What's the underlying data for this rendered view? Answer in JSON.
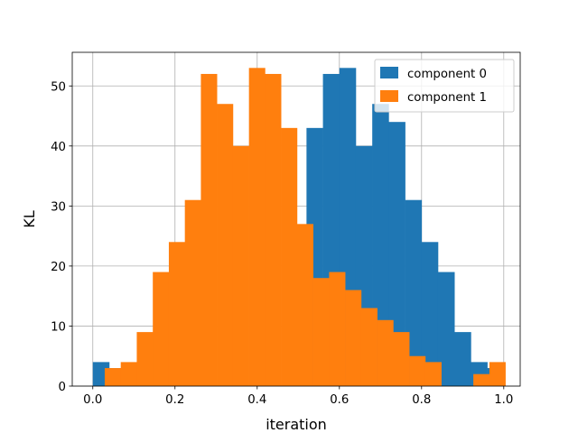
{
  "chart_data": {
    "type": "bar",
    "title": "",
    "xlabel": "iteration",
    "ylabel": "KL",
    "xlim": [
      -0.05,
      1.04
    ],
    "ylim": [
      0,
      55.6
    ],
    "xticks": [
      0.0,
      0.2,
      0.4,
      0.6,
      0.8,
      1.0
    ],
    "xtick_labels": [
      "0.0",
      "0.2",
      "0.4",
      "0.6",
      "0.8",
      "1.0"
    ],
    "yticks": [
      0,
      10,
      20,
      30,
      40,
      50
    ],
    "ytick_labels": [
      "0",
      "10",
      "20",
      "30",
      "40",
      "50"
    ],
    "grid": true,
    "legend": "top-right",
    "series": [
      {
        "name": "component 0",
        "color": "#1f77b4",
        "bins": [
          [
            0.0,
            0.04,
            4
          ],
          [
            0.04,
            0.08,
            3
          ],
          [
            0.08,
            0.12,
            3
          ],
          [
            0.12,
            0.16,
            8
          ],
          [
            0.52,
            0.56,
            43
          ],
          [
            0.56,
            0.6,
            52
          ],
          [
            0.6,
            0.64,
            53
          ],
          [
            0.64,
            0.68,
            40
          ],
          [
            0.68,
            0.72,
            47
          ],
          [
            0.72,
            0.76,
            44
          ],
          [
            0.76,
            0.8,
            31
          ],
          [
            0.8,
            0.84,
            24
          ],
          [
            0.84,
            0.88,
            19
          ],
          [
            0.88,
            0.92,
            9
          ],
          [
            0.92,
            0.96,
            4
          ],
          [
            0.96,
            1.0,
            3
          ]
        ]
      },
      {
        "name": "component 1",
        "color": "#ff7f0e",
        "bins": [
          [
            0.029,
            0.068,
            3
          ],
          [
            0.068,
            0.107,
            4
          ],
          [
            0.107,
            0.146,
            9
          ],
          [
            0.146,
            0.185,
            19
          ],
          [
            0.185,
            0.224,
            24
          ],
          [
            0.224,
            0.263,
            31
          ],
          [
            0.263,
            0.302,
            52
          ],
          [
            0.302,
            0.341,
            47
          ],
          [
            0.341,
            0.38,
            40
          ],
          [
            0.38,
            0.419,
            53
          ],
          [
            0.419,
            0.458,
            52
          ],
          [
            0.458,
            0.497,
            43
          ],
          [
            0.497,
            0.536,
            27
          ],
          [
            0.536,
            0.575,
            18
          ],
          [
            0.575,
            0.614,
            19
          ],
          [
            0.614,
            0.653,
            16
          ],
          [
            0.653,
            0.692,
            13
          ],
          [
            0.692,
            0.731,
            11
          ],
          [
            0.731,
            0.77,
            9
          ],
          [
            0.77,
            0.809,
            5
          ],
          [
            0.809,
            0.848,
            4
          ],
          [
            0.848,
            0.887,
            0
          ],
          [
            0.887,
            0.926,
            0
          ],
          [
            0.926,
            0.965,
            2
          ],
          [
            0.965,
            1.004,
            4
          ]
        ]
      }
    ]
  }
}
